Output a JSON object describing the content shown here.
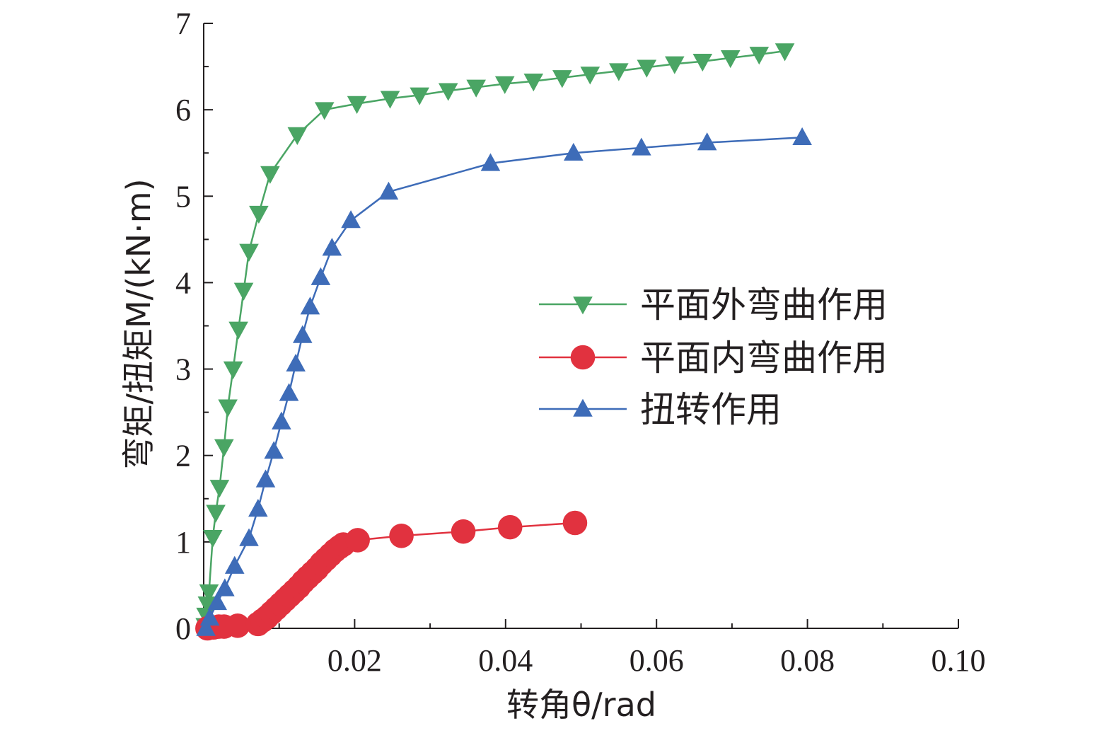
{
  "chart_data": {
    "type": "line",
    "xlabel": "转角θ/rad",
    "ylabel": "弯矩/扭矩M/(kN·m)",
    "xlim": [
      0,
      0.1
    ],
    "ylim": [
      0,
      7
    ],
    "x_ticks": [
      0.02,
      0.04,
      0.06,
      0.08,
      0.1
    ],
    "x_tick_labels": [
      "0.02",
      "0.04",
      "0.06",
      "0.08",
      "0.10"
    ],
    "y_ticks": [
      0,
      1,
      2,
      3,
      4,
      5,
      6,
      7
    ],
    "y_tick_labels": [
      "0",
      "1",
      "2",
      "3",
      "4",
      "5",
      "6",
      "7"
    ],
    "grid": false,
    "legend_position": "center-right",
    "series": [
      {
        "name": "平面外弯曲作用",
        "color": "#4aa564",
        "marker": "triangle-down",
        "points": [
          [
            0.0002,
            0.03
          ],
          [
            0.0003,
            0.15
          ],
          [
            0.0005,
            0.28
          ],
          [
            0.0007,
            0.42
          ],
          [
            0.0012,
            1.05
          ],
          [
            0.0016,
            1.34
          ],
          [
            0.0021,
            1.63
          ],
          [
            0.0027,
            2.1
          ],
          [
            0.0032,
            2.56
          ],
          [
            0.0039,
            3.0
          ],
          [
            0.0046,
            3.46
          ],
          [
            0.0053,
            3.91
          ],
          [
            0.006,
            4.36
          ],
          [
            0.0073,
            4.8
          ],
          [
            0.0088,
            5.26
          ],
          [
            0.0124,
            5.71
          ],
          [
            0.016,
            6.0
          ],
          [
            0.0203,
            6.07
          ],
          [
            0.0247,
            6.13
          ],
          [
            0.0286,
            6.17
          ],
          [
            0.0324,
            6.22
          ],
          [
            0.0361,
            6.26
          ],
          [
            0.0399,
            6.3
          ],
          [
            0.0437,
            6.33
          ],
          [
            0.0475,
            6.37
          ],
          [
            0.0512,
            6.41
          ],
          [
            0.055,
            6.45
          ],
          [
            0.0587,
            6.49
          ],
          [
            0.0624,
            6.53
          ],
          [
            0.0661,
            6.56
          ],
          [
            0.0698,
            6.6
          ],
          [
            0.0736,
            6.64
          ],
          [
            0.077,
            6.68
          ]
        ]
      },
      {
        "name": "平面内弯曲作用",
        "color": "#e1323f",
        "marker": "circle",
        "points": [
          [
            0.0005,
            0.0
          ],
          [
            0.0013,
            0.01
          ],
          [
            0.002,
            0.02
          ],
          [
            0.0027,
            0.02
          ],
          [
            0.0045,
            0.03
          ],
          [
            0.0072,
            0.05
          ],
          [
            0.0078,
            0.09
          ],
          [
            0.0084,
            0.13
          ],
          [
            0.009,
            0.18
          ],
          [
            0.0096,
            0.23
          ],
          [
            0.0102,
            0.28
          ],
          [
            0.0108,
            0.33
          ],
          [
            0.0114,
            0.38
          ],
          [
            0.012,
            0.43
          ],
          [
            0.0126,
            0.48
          ],
          [
            0.0132,
            0.54
          ],
          [
            0.0138,
            0.59
          ],
          [
            0.0144,
            0.64
          ],
          [
            0.015,
            0.69
          ],
          [
            0.0156,
            0.75
          ],
          [
            0.0162,
            0.8
          ],
          [
            0.0168,
            0.85
          ],
          [
            0.0174,
            0.9
          ],
          [
            0.018,
            0.94
          ],
          [
            0.0185,
            0.97
          ],
          [
            0.0204,
            1.02
          ],
          [
            0.0262,
            1.07
          ],
          [
            0.0344,
            1.12
          ],
          [
            0.0406,
            1.17
          ],
          [
            0.0492,
            1.22
          ]
        ]
      },
      {
        "name": "扭转作用",
        "color": "#3e6cb8",
        "marker": "triangle-up",
        "points": [
          [
            0.0003,
            0.0
          ],
          [
            0.0008,
            0.12
          ],
          [
            0.0018,
            0.3
          ],
          [
            0.0028,
            0.46
          ],
          [
            0.0041,
            0.72
          ],
          [
            0.006,
            1.04
          ],
          [
            0.0072,
            1.38
          ],
          [
            0.0082,
            1.72
          ],
          [
            0.0093,
            2.05
          ],
          [
            0.0103,
            2.39
          ],
          [
            0.0113,
            2.72
          ],
          [
            0.0122,
            3.06
          ],
          [
            0.0131,
            3.39
          ],
          [
            0.0141,
            3.72
          ],
          [
            0.0155,
            4.06
          ],
          [
            0.017,
            4.4
          ],
          [
            0.0195,
            4.72
          ],
          [
            0.0245,
            5.05
          ],
          [
            0.038,
            5.38
          ],
          [
            0.049,
            5.5
          ],
          [
            0.058,
            5.56
          ],
          [
            0.0667,
            5.62
          ],
          [
            0.0793,
            5.68
          ]
        ]
      }
    ]
  }
}
